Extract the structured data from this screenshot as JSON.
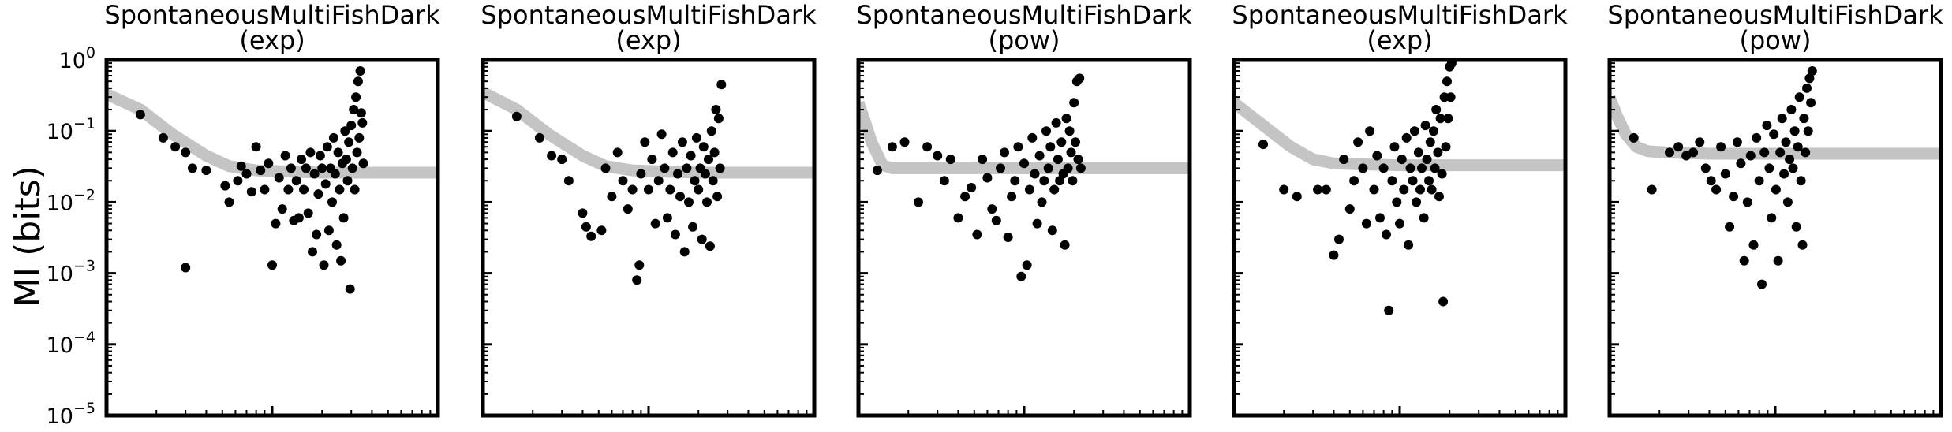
{
  "figure": {
    "ylabel": "MI (bits)"
  },
  "chart_data": [
    {
      "type": "scatter",
      "title": "SpontaneousMultiFishDark",
      "subtitle": "(exp)",
      "yscale": "log",
      "ylim": [
        1e-05,
        1
      ],
      "y_ticks": [
        "10^0",
        "10^-1",
        "10^-2",
        "10^-3",
        "10^-4",
        "10^-5"
      ],
      "xscale": "log",
      "xlim": [
        1,
        100
      ],
      "grid": false,
      "fit_line": {
        "x": [
          1,
          1.6,
          2.5,
          4,
          5.5,
          8,
          12,
          20,
          40,
          100
        ],
        "y": [
          0.33,
          0.2,
          0.09,
          0.045,
          0.032,
          0.028,
          0.027,
          0.026,
          0.026,
          0.026
        ]
      },
      "points": [
        [
          1.6,
          0.17
        ],
        [
          2.2,
          0.08
        ],
        [
          2.6,
          0.06
        ],
        [
          3.0,
          0.05
        ],
        [
          3.3,
          0.03
        ],
        [
          4.0,
          0.028
        ],
        [
          3.0,
          0.0012
        ],
        [
          5.2,
          0.017
        ],
        [
          5.5,
          0.01
        ],
        [
          6.2,
          0.02
        ],
        [
          6.5,
          0.032
        ],
        [
          7.0,
          0.025
        ],
        [
          7.5,
          0.014
        ],
        [
          8.0,
          0.06
        ],
        [
          8.5,
          0.028
        ],
        [
          9.0,
          0.015
        ],
        [
          9.5,
          0.035
        ],
        [
          10.0,
          0.0013
        ],
        [
          10.5,
          0.005
        ],
        [
          11.0,
          0.022
        ],
        [
          11.5,
          0.008
        ],
        [
          12.0,
          0.045
        ],
        [
          12.5,
          0.015
        ],
        [
          13.0,
          0.03
        ],
        [
          13.5,
          0.0055
        ],
        [
          14.0,
          0.02
        ],
        [
          14.5,
          0.006
        ],
        [
          15.0,
          0.04
        ],
        [
          15.5,
          0.015
        ],
        [
          16.0,
          0.03
        ],
        [
          16.5,
          0.007
        ],
        [
          17.0,
          0.05
        ],
        [
          17.5,
          0.002
        ],
        [
          18.0,
          0.025
        ],
        [
          18.5,
          0.0035
        ],
        [
          19.0,
          0.013
        ],
        [
          19.5,
          0.045
        ],
        [
          20.0,
          0.03
        ],
        [
          20.5,
          0.0013
        ],
        [
          21.0,
          0.018
        ],
        [
          21.5,
          0.06
        ],
        [
          22.0,
          0.004
        ],
        [
          22.5,
          0.03
        ],
        [
          23.0,
          0.01
        ],
        [
          23.5,
          0.08
        ],
        [
          24.0,
          0.025
        ],
        [
          24.5,
          0.0025
        ],
        [
          25.0,
          0.05
        ],
        [
          25.5,
          0.015
        ],
        [
          26.0,
          0.0015
        ],
        [
          26.5,
          0.035
        ],
        [
          27.0,
          0.006
        ],
        [
          27.5,
          0.1
        ],
        [
          28.0,
          0.04
        ],
        [
          28.5,
          0.02
        ],
        [
          29.0,
          0.07
        ],
        [
          29.5,
          0.0006
        ],
        [
          30.0,
          0.12
        ],
        [
          30.5,
          0.03
        ],
        [
          31.0,
          0.2
        ],
        [
          31.5,
          0.015
        ],
        [
          32.0,
          0.3
        ],
        [
          32.5,
          0.05
        ],
        [
          33.0,
          0.5
        ],
        [
          33.5,
          0.08
        ],
        [
          34.0,
          0.7
        ],
        [
          34.5,
          0.18
        ],
        [
          35.0,
          0.13
        ],
        [
          35.5,
          0.035
        ]
      ]
    },
    {
      "type": "scatter",
      "title": "SpontaneousMultiFishDark",
      "subtitle": "(exp)",
      "yscale": "log",
      "ylim": [
        1e-05,
        1
      ],
      "xscale": "log",
      "xlim": [
        1,
        100
      ],
      "grid": false,
      "fit_line": {
        "x": [
          1,
          1.6,
          2.5,
          4,
          5.5,
          8,
          12,
          20,
          40,
          100
        ],
        "y": [
          0.35,
          0.2,
          0.09,
          0.045,
          0.032,
          0.028,
          0.027,
          0.026,
          0.026,
          0.026
        ]
      },
      "points": [
        [
          1.6,
          0.16
        ],
        [
          2.2,
          0.08
        ],
        [
          2.6,
          0.045
        ],
        [
          3.0,
          0.04
        ],
        [
          3.3,
          0.02
        ],
        [
          4.0,
          0.007
        ],
        [
          4.2,
          0.0045
        ],
        [
          4.5,
          0.0033
        ],
        [
          5.2,
          0.004
        ],
        [
          5.5,
          0.03
        ],
        [
          6.0,
          0.012
        ],
        [
          6.5,
          0.05
        ],
        [
          7.0,
          0.02
        ],
        [
          7.5,
          0.008
        ],
        [
          8.0,
          0.015
        ],
        [
          8.5,
          0.0008
        ],
        [
          8.8,
          0.0013
        ],
        [
          9.0,
          0.025
        ],
        [
          9.5,
          0.07
        ],
        [
          10.0,
          0.015
        ],
        [
          10.5,
          0.04
        ],
        [
          11.0,
          0.005
        ],
        [
          11.5,
          0.02
        ],
        [
          12.0,
          0.09
        ],
        [
          12.5,
          0.03
        ],
        [
          13.0,
          0.006
        ],
        [
          13.5,
          0.015
        ],
        [
          14.0,
          0.05
        ],
        [
          14.5,
          0.0035
        ],
        [
          15.0,
          0.025
        ],
        [
          15.5,
          0.012
        ],
        [
          16.0,
          0.07
        ],
        [
          16.5,
          0.002
        ],
        [
          17.0,
          0.03
        ],
        [
          17.5,
          0.01
        ],
        [
          18.0,
          0.045
        ],
        [
          18.5,
          0.0045
        ],
        [
          19.0,
          0.02
        ],
        [
          19.5,
          0.08
        ],
        [
          20.0,
          0.015
        ],
        [
          20.5,
          0.03
        ],
        [
          21.0,
          0.003
        ],
        [
          21.5,
          0.06
        ],
        [
          22.0,
          0.025
        ],
        [
          22.5,
          0.01
        ],
        [
          23.0,
          0.04
        ],
        [
          23.5,
          0.0024
        ],
        [
          24.0,
          0.1
        ],
        [
          24.5,
          0.02
        ],
        [
          25.0,
          0.05
        ],
        [
          25.5,
          0.2
        ],
        [
          26.0,
          0.012
        ],
        [
          26.5,
          0.15
        ],
        [
          27.0,
          0.03
        ],
        [
          27.5,
          0.45
        ]
      ]
    },
    {
      "type": "scatter",
      "title": "SpontaneousMultiFishDark",
      "subtitle": "(pow)",
      "yscale": "log",
      "ylim": [
        1e-05,
        1
      ],
      "xscale": "log",
      "xlim": [
        1,
        100
      ],
      "grid": false,
      "fit_line": {
        "x": [
          1,
          1.08,
          1.2,
          1.4,
          1.6,
          2,
          4,
          10,
          30,
          100
        ],
        "y": [
          0.25,
          0.15,
          0.07,
          0.033,
          0.03,
          0.03,
          0.03,
          0.03,
          0.03,
          0.03
        ]
      },
      "points": [
        [
          1.3,
          0.028
        ],
        [
          1.6,
          0.06
        ],
        [
          1.9,
          0.07
        ],
        [
          2.3,
          0.01
        ],
        [
          2.6,
          0.06
        ],
        [
          3.0,
          0.045
        ],
        [
          3.3,
          0.02
        ],
        [
          3.6,
          0.04
        ],
        [
          4.0,
          0.006
        ],
        [
          4.4,
          0.012
        ],
        [
          4.8,
          0.016
        ],
        [
          5.2,
          0.0035
        ],
        [
          5.6,
          0.04
        ],
        [
          6.0,
          0.022
        ],
        [
          6.4,
          0.008
        ],
        [
          6.8,
          0.0055
        ],
        [
          7.2,
          0.03
        ],
        [
          7.6,
          0.05
        ],
        [
          8.0,
          0.0032
        ],
        [
          8.4,
          0.012
        ],
        [
          8.8,
          0.02
        ],
        [
          9.2,
          0.06
        ],
        [
          9.6,
          0.0009
        ],
        [
          10.0,
          0.035
        ],
        [
          10.4,
          0.0013
        ],
        [
          10.8,
          0.015
        ],
        [
          11.2,
          0.08
        ],
        [
          11.6,
          0.025
        ],
        [
          12.0,
          0.005
        ],
        [
          12.4,
          0.045
        ],
        [
          12.8,
          0.01
        ],
        [
          13.2,
          0.02
        ],
        [
          13.6,
          0.1
        ],
        [
          14.0,
          0.03
        ],
        [
          14.4,
          0.06
        ],
        [
          14.8,
          0.004
        ],
        [
          15.2,
          0.015
        ],
        [
          15.6,
          0.13
        ],
        [
          16.0,
          0.04
        ],
        [
          16.4,
          0.02
        ],
        [
          16.8,
          0.07
        ],
        [
          17.2,
          0.025
        ],
        [
          17.6,
          0.0025
        ],
        [
          18.0,
          0.15
        ],
        [
          18.4,
          0.03
        ],
        [
          18.8,
          0.1
        ],
        [
          19.2,
          0.05
        ],
        [
          19.6,
          0.02
        ],
        [
          20.0,
          0.25
        ],
        [
          20.4,
          0.07
        ],
        [
          20.8,
          0.5
        ],
        [
          21.2,
          0.04
        ],
        [
          21.6,
          0.55
        ],
        [
          22.0,
          0.03
        ]
      ]
    },
    {
      "type": "scatter",
      "title": "SpontaneousMultiFishDark",
      "subtitle": "(exp)",
      "yscale": "log",
      "ylim": [
        1e-05,
        1
      ],
      "xscale": "log",
      "xlim": [
        1,
        100
      ],
      "grid": false,
      "fit_line": {
        "x": [
          1,
          1.5,
          2.2,
          3,
          4,
          6,
          10,
          20,
          50,
          100
        ],
        "y": [
          0.25,
          0.12,
          0.06,
          0.04,
          0.035,
          0.034,
          0.033,
          0.033,
          0.033,
          0.033
        ]
      },
      "points": [
        [
          1.5,
          0.065
        ],
        [
          2.0,
          0.015
        ],
        [
          2.4,
          0.012
        ],
        [
          3.2,
          0.015
        ],
        [
          3.6,
          0.015
        ],
        [
          4.0,
          0.0018
        ],
        [
          4.3,
          0.003
        ],
        [
          4.6,
          0.04
        ],
        [
          5.0,
          0.008
        ],
        [
          5.3,
          0.02
        ],
        [
          5.6,
          0.07
        ],
        [
          6.0,
          0.03
        ],
        [
          6.3,
          0.005
        ],
        [
          6.6,
          0.1
        ],
        [
          7.0,
          0.015
        ],
        [
          7.3,
          0.045
        ],
        [
          7.6,
          0.006
        ],
        [
          8.0,
          0.03
        ],
        [
          8.3,
          0.0035
        ],
        [
          8.6,
          0.0003
        ],
        [
          9.0,
          0.02
        ],
        [
          9.3,
          0.06
        ],
        [
          9.6,
          0.01
        ],
        [
          10.0,
          0.005
        ],
        [
          10.3,
          0.04
        ],
        [
          10.6,
          0.015
        ],
        [
          11.0,
          0.08
        ],
        [
          11.3,
          0.0025
        ],
        [
          11.6,
          0.03
        ],
        [
          12.0,
          0.02
        ],
        [
          12.3,
          0.1
        ],
        [
          12.6,
          0.01
        ],
        [
          13.0,
          0.05
        ],
        [
          13.3,
          0.015
        ],
        [
          13.6,
          0.03
        ],
        [
          14.0,
          0.006
        ],
        [
          14.3,
          0.12
        ],
        [
          14.6,
          0.04
        ],
        [
          15.0,
          0.02
        ],
        [
          15.3,
          0.07
        ],
        [
          15.6,
          0.015
        ],
        [
          16.0,
          0.1
        ],
        [
          16.3,
          0.03
        ],
        [
          16.6,
          0.2
        ],
        [
          17.0,
          0.05
        ],
        [
          17.3,
          0.012
        ],
        [
          17.6,
          0.15
        ],
        [
          18.0,
          0.025
        ],
        [
          18.3,
          0.0004
        ],
        [
          18.6,
          0.3
        ],
        [
          19.0,
          0.06
        ],
        [
          19.3,
          0.5
        ],
        [
          19.6,
          0.15
        ],
        [
          20.0,
          0.8
        ],
        [
          20.3,
          0.3
        ],
        [
          20.6,
          0.9
        ]
      ]
    },
    {
      "type": "scatter",
      "title": "SpontaneousMultiFishDark",
      "subtitle": "(pow)",
      "yscale": "log",
      "ylim": [
        1e-05,
        1
      ],
      "xscale": "log",
      "xlim": [
        1,
        100
      ],
      "grid": false,
      "fit_line": {
        "x": [
          1,
          1.1,
          1.25,
          1.45,
          1.7,
          2.2,
          4,
          10,
          30,
          100
        ],
        "y": [
          0.3,
          0.17,
          0.09,
          0.06,
          0.052,
          0.05,
          0.048,
          0.048,
          0.048,
          0.048
        ]
      },
      "points": [
        [
          1.4,
          0.08
        ],
        [
          1.8,
          0.015
        ],
        [
          2.3,
          0.05
        ],
        [
          2.6,
          0.06
        ],
        [
          2.9,
          0.045
        ],
        [
          3.2,
          0.05
        ],
        [
          3.5,
          0.07
        ],
        [
          3.8,
          0.03
        ],
        [
          4.1,
          0.02
        ],
        [
          4.4,
          0.015
        ],
        [
          4.7,
          0.06
        ],
        [
          5.0,
          0.025
        ],
        [
          5.3,
          0.0045
        ],
        [
          5.6,
          0.012
        ],
        [
          5.9,
          0.07
        ],
        [
          6.2,
          0.035
        ],
        [
          6.5,
          0.0015
        ],
        [
          6.8,
          0.01
        ],
        [
          7.1,
          0.045
        ],
        [
          7.4,
          0.0025
        ],
        [
          7.7,
          0.08
        ],
        [
          8.0,
          0.02
        ],
        [
          8.3,
          0.0007
        ],
        [
          8.6,
          0.05
        ],
        [
          8.9,
          0.12
        ],
        [
          9.2,
          0.03
        ],
        [
          9.5,
          0.006
        ],
        [
          9.8,
          0.09
        ],
        [
          10.1,
          0.015
        ],
        [
          10.4,
          0.0015
        ],
        [
          10.7,
          0.05
        ],
        [
          11.0,
          0.15
        ],
        [
          11.3,
          0.025
        ],
        [
          11.6,
          0.07
        ],
        [
          11.9,
          0.01
        ],
        [
          12.2,
          0.04
        ],
        [
          12.5,
          0.2
        ],
        [
          12.8,
          0.03
        ],
        [
          13.1,
          0.1
        ],
        [
          13.4,
          0.0045
        ],
        [
          13.7,
          0.06
        ],
        [
          14.0,
          0.3
        ],
        [
          14.3,
          0.02
        ],
        [
          14.6,
          0.0025
        ],
        [
          14.9,
          0.15
        ],
        [
          15.2,
          0.05
        ],
        [
          15.5,
          0.4
        ],
        [
          15.8,
          0.1
        ],
        [
          16.1,
          0.55
        ],
        [
          16.4,
          0.25
        ],
        [
          16.7,
          0.7
        ]
      ]
    }
  ]
}
